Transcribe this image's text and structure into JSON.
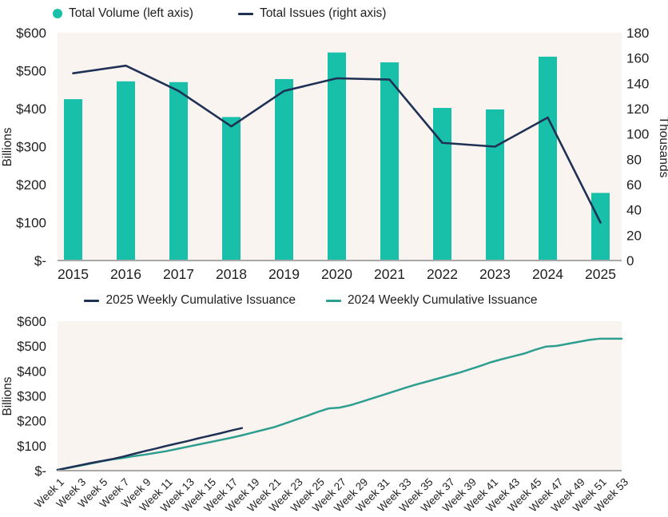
{
  "colors": {
    "teal_bar": "#18BFA9",
    "navy_line": "#1F3255",
    "teal_line_2024": "#2E9E8F",
    "plot_background": "#FAF4F1",
    "axis_line": "#A8A8A8",
    "text": "#1F1F1F"
  },
  "chart_data": [
    {
      "type": "bar",
      "subtype": "bar+line combo, dual axis",
      "title": "",
      "legend_position": "top-left",
      "grid": false,
      "legend": [
        {
          "label": "Total Volume (left axis)",
          "marker": "dot",
          "color": "#18BFA9"
        },
        {
          "label": "Total Issues (right axis)",
          "marker": "line",
          "color": "#1F3255"
        }
      ],
      "categories": [
        "2015",
        "2016",
        "2017",
        "2018",
        "2019",
        "2020",
        "2021",
        "2022",
        "2023",
        "2024",
        "2025"
      ],
      "series": [
        {
          "name": "Total Volume (left axis)",
          "type": "bar",
          "axis": "left",
          "color": "#18BFA9",
          "values": [
            425,
            472,
            470,
            378,
            478,
            548,
            522,
            402,
            398,
            537,
            178
          ]
        },
        {
          "name": "Total Issues (right axis)",
          "type": "line",
          "axis": "right",
          "color": "#1F3255",
          "values": [
            148,
            154,
            134,
            106,
            134,
            144,
            143,
            93,
            90,
            113,
            30
          ]
        }
      ],
      "left_axis": {
        "title": "Billions",
        "max": 600,
        "tick_values": [
          0,
          100,
          200,
          300,
          400,
          500,
          600
        ],
        "tick_labels": [
          "$-",
          "$100",
          "$200",
          "$300",
          "$400",
          "$500",
          "$600"
        ]
      },
      "right_axis": {
        "title": "Thousands",
        "max": 180,
        "tick_values": [
          0,
          20,
          40,
          60,
          80,
          100,
          120,
          140,
          160,
          180
        ],
        "tick_labels": [
          "0",
          "20",
          "40",
          "60",
          "80",
          "100",
          "120",
          "140",
          "160",
          "180"
        ]
      }
    },
    {
      "type": "line",
      "title": "",
      "legend_position": "top-center",
      "grid": false,
      "legend": [
        {
          "label": "2025 Weekly Cumulative Issuance",
          "marker": "line",
          "color": "#1F3255"
        },
        {
          "label": "2024 Weekly Cumulative Issuance",
          "marker": "line",
          "color": "#2E9E8F"
        }
      ],
      "x_tick_labels": [
        "Week 1",
        "Week 3",
        "Week 5",
        "Week 7",
        "Week 9",
        "Week 11",
        "Week 13",
        "Week 15",
        "Week 17",
        "Week 19",
        "Week 21",
        "Week 23",
        "Week 25",
        "Week 27",
        "Week 29",
        "Week 31",
        "Week 33",
        "Week 35",
        "Week 37",
        "Week 39",
        "Week 41",
        "Week 43",
        "Week 45",
        "Week 47",
        "Week 49",
        "Week 51",
        "Week 53"
      ],
      "x_range_weeks": [
        1,
        53
      ],
      "series": [
        {
          "name": "2025 Weekly Cumulative Issuance",
          "color": "#1F3255",
          "start_week": 1,
          "values": [
            3,
            12,
            21,
            30,
            38,
            46,
            56,
            67,
            78,
            88,
            99,
            109,
            119,
            130,
            140,
            150,
            161,
            171
          ]
        },
        {
          "name": "2024 Weekly Cumulative Issuance",
          "color": "#2E9E8F",
          "start_week": 1,
          "values": [
            3,
            11,
            19,
            28,
            37,
            45,
            51,
            58,
            64,
            71,
            78,
            87,
            96,
            105,
            114,
            123,
            132,
            142,
            153,
            164,
            175,
            190,
            205,
            220,
            236,
            250,
            253,
            263,
            276,
            290,
            304,
            318,
            332,
            345,
            357,
            369,
            381,
            393,
            407,
            421,
            436,
            448,
            459,
            470,
            485,
            498,
            501,
            509,
            517,
            525,
            530,
            530,
            530
          ]
        }
      ],
      "left_axis": {
        "title": "Billions",
        "max": 600,
        "tick_values": [
          0,
          100,
          200,
          300,
          400,
          500,
          600
        ],
        "tick_labels": [
          "$-",
          "$100",
          "$200",
          "$300",
          "$400",
          "$500",
          "$600"
        ]
      }
    }
  ]
}
